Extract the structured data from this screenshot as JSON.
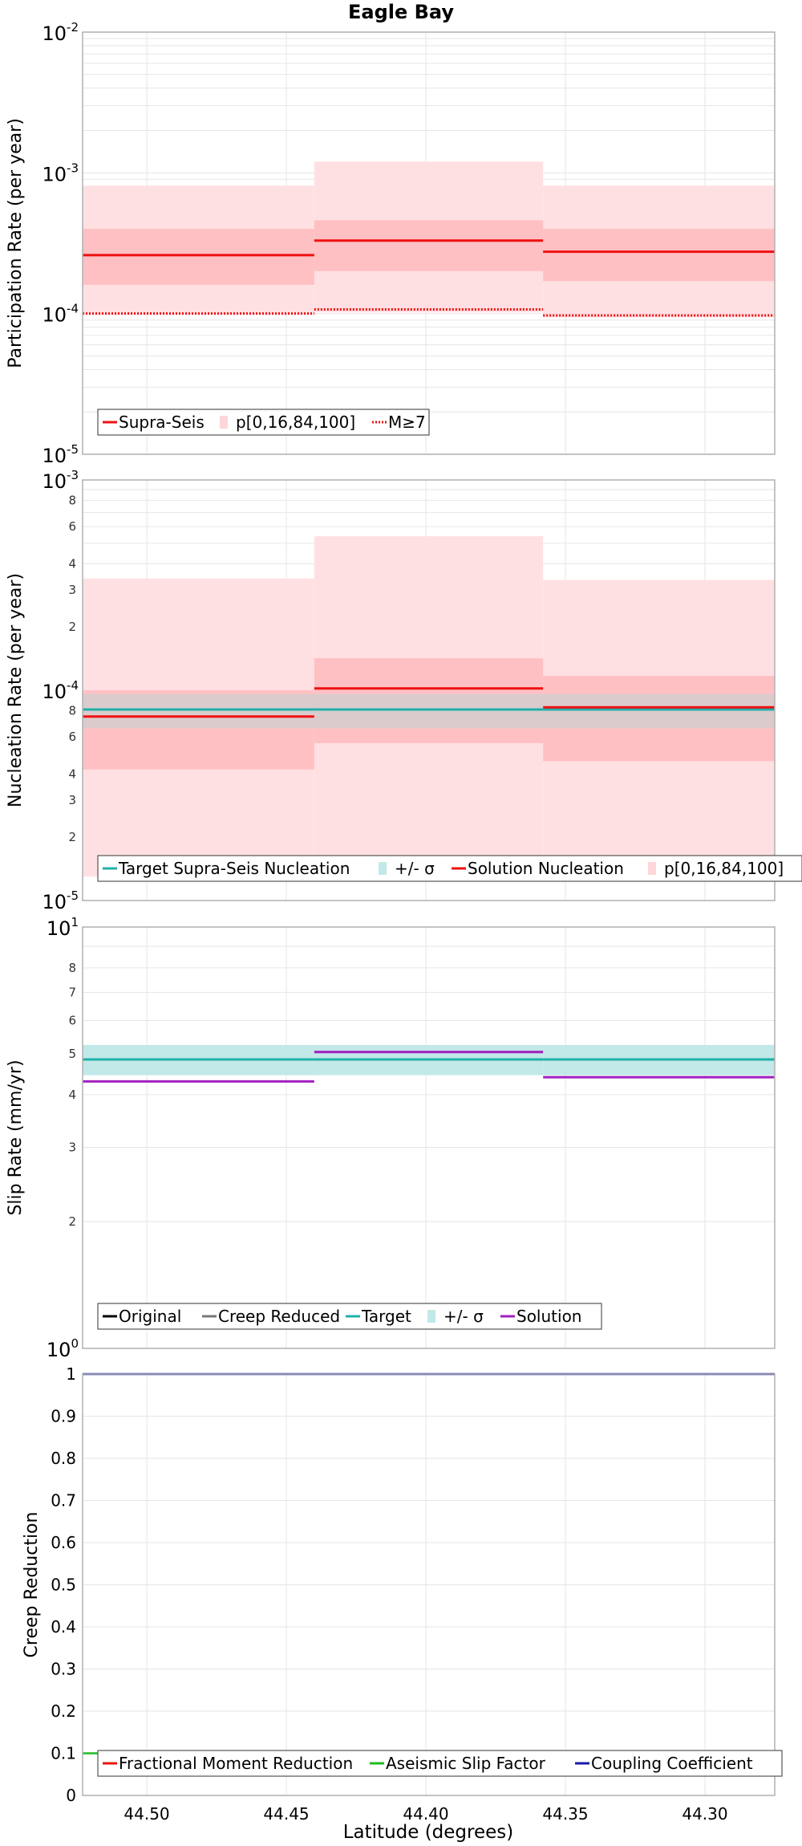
{
  "title": "Eagle Bay",
  "xlabel": "Latitude (degrees)",
  "x_ticks": [
    "44.50",
    "44.45",
    "44.40",
    "44.35",
    "44.30"
  ],
  "colors": {
    "red": "#ee1111",
    "red_band_outer": "#ffe0e2",
    "red_band_inner": "#ffc0c4",
    "teal": "#20b0a8",
    "teal_band": "#c2e8e8",
    "grey_band": "#cfcfcf",
    "purple": "#a020c0",
    "green": "#22bb22",
    "navy": "#1a1aa8",
    "grid": "#e6e6e6",
    "border": "#b0b0b0"
  },
  "chart_data": [
    {
      "type": "line",
      "title": "Eagle Bay",
      "ylabel": "Participation Rate (per year)",
      "yscale": "log",
      "ylim": [
        1e-05,
        0.01
      ],
      "xlim": [
        44.523,
        44.275
      ],
      "grid": true,
      "legend_position": "bottom-left",
      "y_tick_labels": [
        {
          "base": "10",
          "exp": "-5"
        },
        {
          "base": "10",
          "exp": "-4"
        },
        {
          "base": "10",
          "exp": "-3"
        },
        {
          "base": "10",
          "exp": "-2"
        }
      ],
      "legend": [
        {
          "label": "Supra-Seis",
          "style": "line",
          "color": "#ee1111"
        },
        {
          "label": "p[0,16,84,100]",
          "style": "band",
          "color": "#ffd6d9"
        },
        {
          "label": "M≥7",
          "style": "dotted",
          "color": "#ee1111"
        }
      ],
      "segments": [
        {
          "x0": 44.523,
          "x1": 44.44
        },
        {
          "x0": 44.44,
          "x1": 44.358
        },
        {
          "x0": 44.358,
          "x1": 44.275
        }
      ],
      "series": [
        {
          "name": "Supra-Seis",
          "values": [
            0.00026,
            0.00033,
            0.000275
          ]
        },
        {
          "name": "M≥7",
          "values": [
            0.0001,
            0.000107,
            9.7e-05
          ]
        }
      ],
      "bands": [
        {
          "name": "p[0,16,84,100] outer",
          "lower": [
            9.8e-05,
            0.000102,
            9.4e-05
          ],
          "upper": [
            0.00081,
            0.0012,
            0.00081
          ]
        },
        {
          "name": "p[0,16,84,100] inner",
          "lower": [
            0.00016,
            0.0002,
            0.00017
          ],
          "upper": [
            0.0004,
            0.00046,
            0.0004
          ]
        }
      ]
    },
    {
      "type": "line",
      "ylabel": "Nucleation Rate (per year)",
      "yscale": "log",
      "ylim": [
        1e-05,
        0.001
      ],
      "xlim": [
        44.523,
        44.275
      ],
      "grid": true,
      "legend_position": "bottom",
      "y_tick_labels": [
        {
          "base": "10",
          "exp": "-5"
        },
        {
          "base": "10",
          "exp": "-4"
        },
        {
          "base": "10",
          "exp": "-3"
        }
      ],
      "y_minor_labels": [
        "2",
        "3",
        "4",
        "6",
        "8",
        "2",
        "3",
        "4",
        "6",
        "8"
      ],
      "legend": [
        {
          "label": "Target Supra-Seis Nucleation",
          "style": "line",
          "color": "#20b0a8"
        },
        {
          "label": "+/- σ",
          "style": "band",
          "color": "#c2e8e8"
        },
        {
          "label": "Solution Nucleation",
          "style": "line",
          "color": "#ee1111"
        },
        {
          "label": "p[0,16,84,100]",
          "style": "band",
          "color": "#ffd6d9"
        }
      ],
      "segments": [
        {
          "x0": 44.523,
          "x1": 44.44
        },
        {
          "x0": 44.44,
          "x1": 44.358
        },
        {
          "x0": 44.358,
          "x1": 44.275
        }
      ],
      "series": [
        {
          "name": "Target Supra-Seis Nucleation",
          "values": [
            8.1e-05,
            8.1e-05,
            8.1e-05
          ]
        },
        {
          "name": "Solution Nucleation",
          "values": [
            7.5e-05,
            0.000102,
            8.3e-05
          ]
        }
      ],
      "bands": [
        {
          "name": "p[0,16,84,100] outer",
          "lower": [
            1.3e-05,
            1.5e-05,
            1.3e-05
          ],
          "upper": [
            0.00034,
            0.00054,
            0.000335
          ]
        },
        {
          "name": "p[0,16,84,100] inner",
          "lower": [
            4.2e-05,
            5.6e-05,
            4.6e-05
          ],
          "upper": [
            0.0001,
            0.000142,
            0.000117
          ]
        },
        {
          "name": "+/- σ",
          "lower": [
            6.6e-05,
            6.6e-05,
            6.6e-05
          ],
          "upper": [
            9.6e-05,
            9.6e-05,
            9.6e-05
          ]
        }
      ]
    },
    {
      "type": "line",
      "ylabel": "Slip Rate (mm/yr)",
      "yscale": "log",
      "ylim": [
        1,
        10
      ],
      "xlim": [
        44.523,
        44.275
      ],
      "grid": true,
      "legend_position": "bottom-left",
      "y_tick_labels": [
        {
          "base": "10",
          "exp": "0"
        },
        {
          "base": "10",
          "exp": "1"
        }
      ],
      "y_minor_labels": [
        "2",
        "3",
        "4",
        "5",
        "6",
        "7",
        "8"
      ],
      "legend": [
        {
          "label": "Original",
          "style": "line",
          "color": "#000000"
        },
        {
          "label": "Creep Reduced",
          "style": "line",
          "color": "#777777"
        },
        {
          "label": "Target",
          "style": "line",
          "color": "#20b0a8"
        },
        {
          "label": "+/- σ",
          "style": "band",
          "color": "#c2e8e8"
        },
        {
          "label": "Solution",
          "style": "line",
          "color": "#a020c0"
        }
      ],
      "segments": [
        {
          "x0": 44.523,
          "x1": 44.44
        },
        {
          "x0": 44.44,
          "x1": 44.358
        },
        {
          "x0": 44.358,
          "x1": 44.275
        }
      ],
      "series": [
        {
          "name": "Target",
          "values": [
            4.85,
            4.85,
            4.85
          ]
        },
        {
          "name": "Solution",
          "values": [
            4.3,
            5.05,
            4.4
          ]
        }
      ],
      "bands": [
        {
          "name": "+/- σ",
          "lower": [
            4.45,
            4.45,
            4.45
          ],
          "upper": [
            5.25,
            5.25,
            5.25
          ]
        }
      ]
    },
    {
      "type": "line",
      "ylabel": "Creep Reduction",
      "yscale": "linear",
      "ylim": [
        0,
        1
      ],
      "xlim": [
        44.523,
        44.275
      ],
      "grid": true,
      "legend_position": "bottom",
      "y_tick_labels": [
        "0",
        "0.1",
        "0.2",
        "0.3",
        "0.4",
        "0.5",
        "0.6",
        "0.7",
        "0.8",
        "0.9",
        "1"
      ],
      "legend": [
        {
          "label": "Fractional Moment Reduction",
          "style": "line",
          "color": "#ee1111"
        },
        {
          "label": "Aseismic Slip Factor",
          "style": "line",
          "color": "#22bb22"
        },
        {
          "label": "Coupling Coefficient",
          "style": "line",
          "color": "#1a1aa8"
        }
      ],
      "segments": [
        {
          "x0": 44.523,
          "x1": 44.44
        },
        {
          "x0": 44.44,
          "x1": 44.358
        },
        {
          "x0": 44.358,
          "x1": 44.275
        }
      ],
      "series": [
        {
          "name": "Aseismic Slip Factor",
          "values": [
            0.1,
            0.1,
            0.1
          ]
        },
        {
          "name": "Coupling Coefficient",
          "values": [
            1.0,
            1.0,
            1.0
          ]
        }
      ]
    }
  ]
}
